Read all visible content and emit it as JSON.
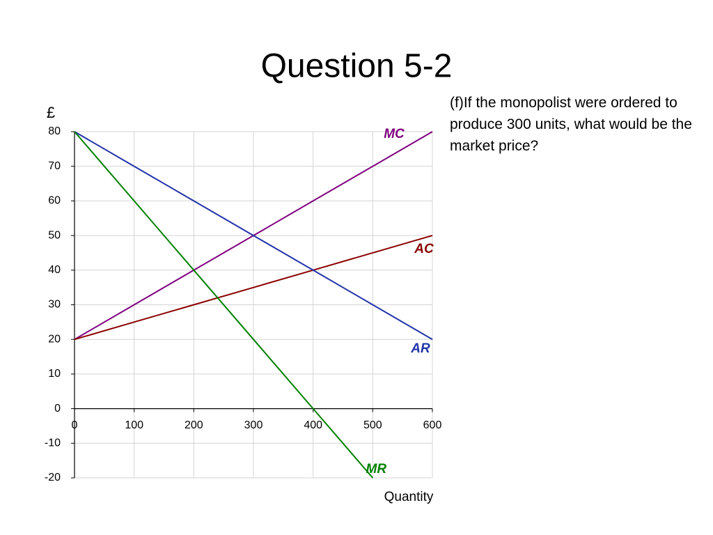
{
  "title": "Question 5-2",
  "annotation": "(f)If the monopolist were ordered to produce 300 units, what would be the market price?",
  "chart_data": {
    "type": "line",
    "ylabel": "£",
    "xlabel": "Quantity",
    "x": [
      0,
      100,
      200,
      300,
      400,
      500,
      600
    ],
    "series": [
      {
        "name": "MC",
        "color": "#800080",
        "values": [
          20,
          30,
          40,
          50,
          60,
          70,
          80
        ]
      },
      {
        "name": "AC",
        "color": "#8b0000",
        "values": [
          20,
          25,
          30,
          35,
          40,
          45,
          50
        ]
      },
      {
        "name": "AR",
        "color": "#2233aa",
        "values": [
          80,
          70,
          60,
          50,
          40,
          30,
          20
        ]
      },
      {
        "name": "MR",
        "color": "#008000",
        "values": [
          80,
          60,
          40,
          20,
          0,
          -20,
          null
        ]
      }
    ],
    "xlim": [
      0,
      600
    ],
    "xticks": [
      0,
      100,
      200,
      300,
      400,
      500,
      600
    ],
    "ylim": [
      -20,
      80
    ],
    "yticks": [
      -20,
      -10,
      0,
      10,
      20,
      30,
      40,
      50,
      60,
      70,
      80
    ],
    "grid": true
  }
}
